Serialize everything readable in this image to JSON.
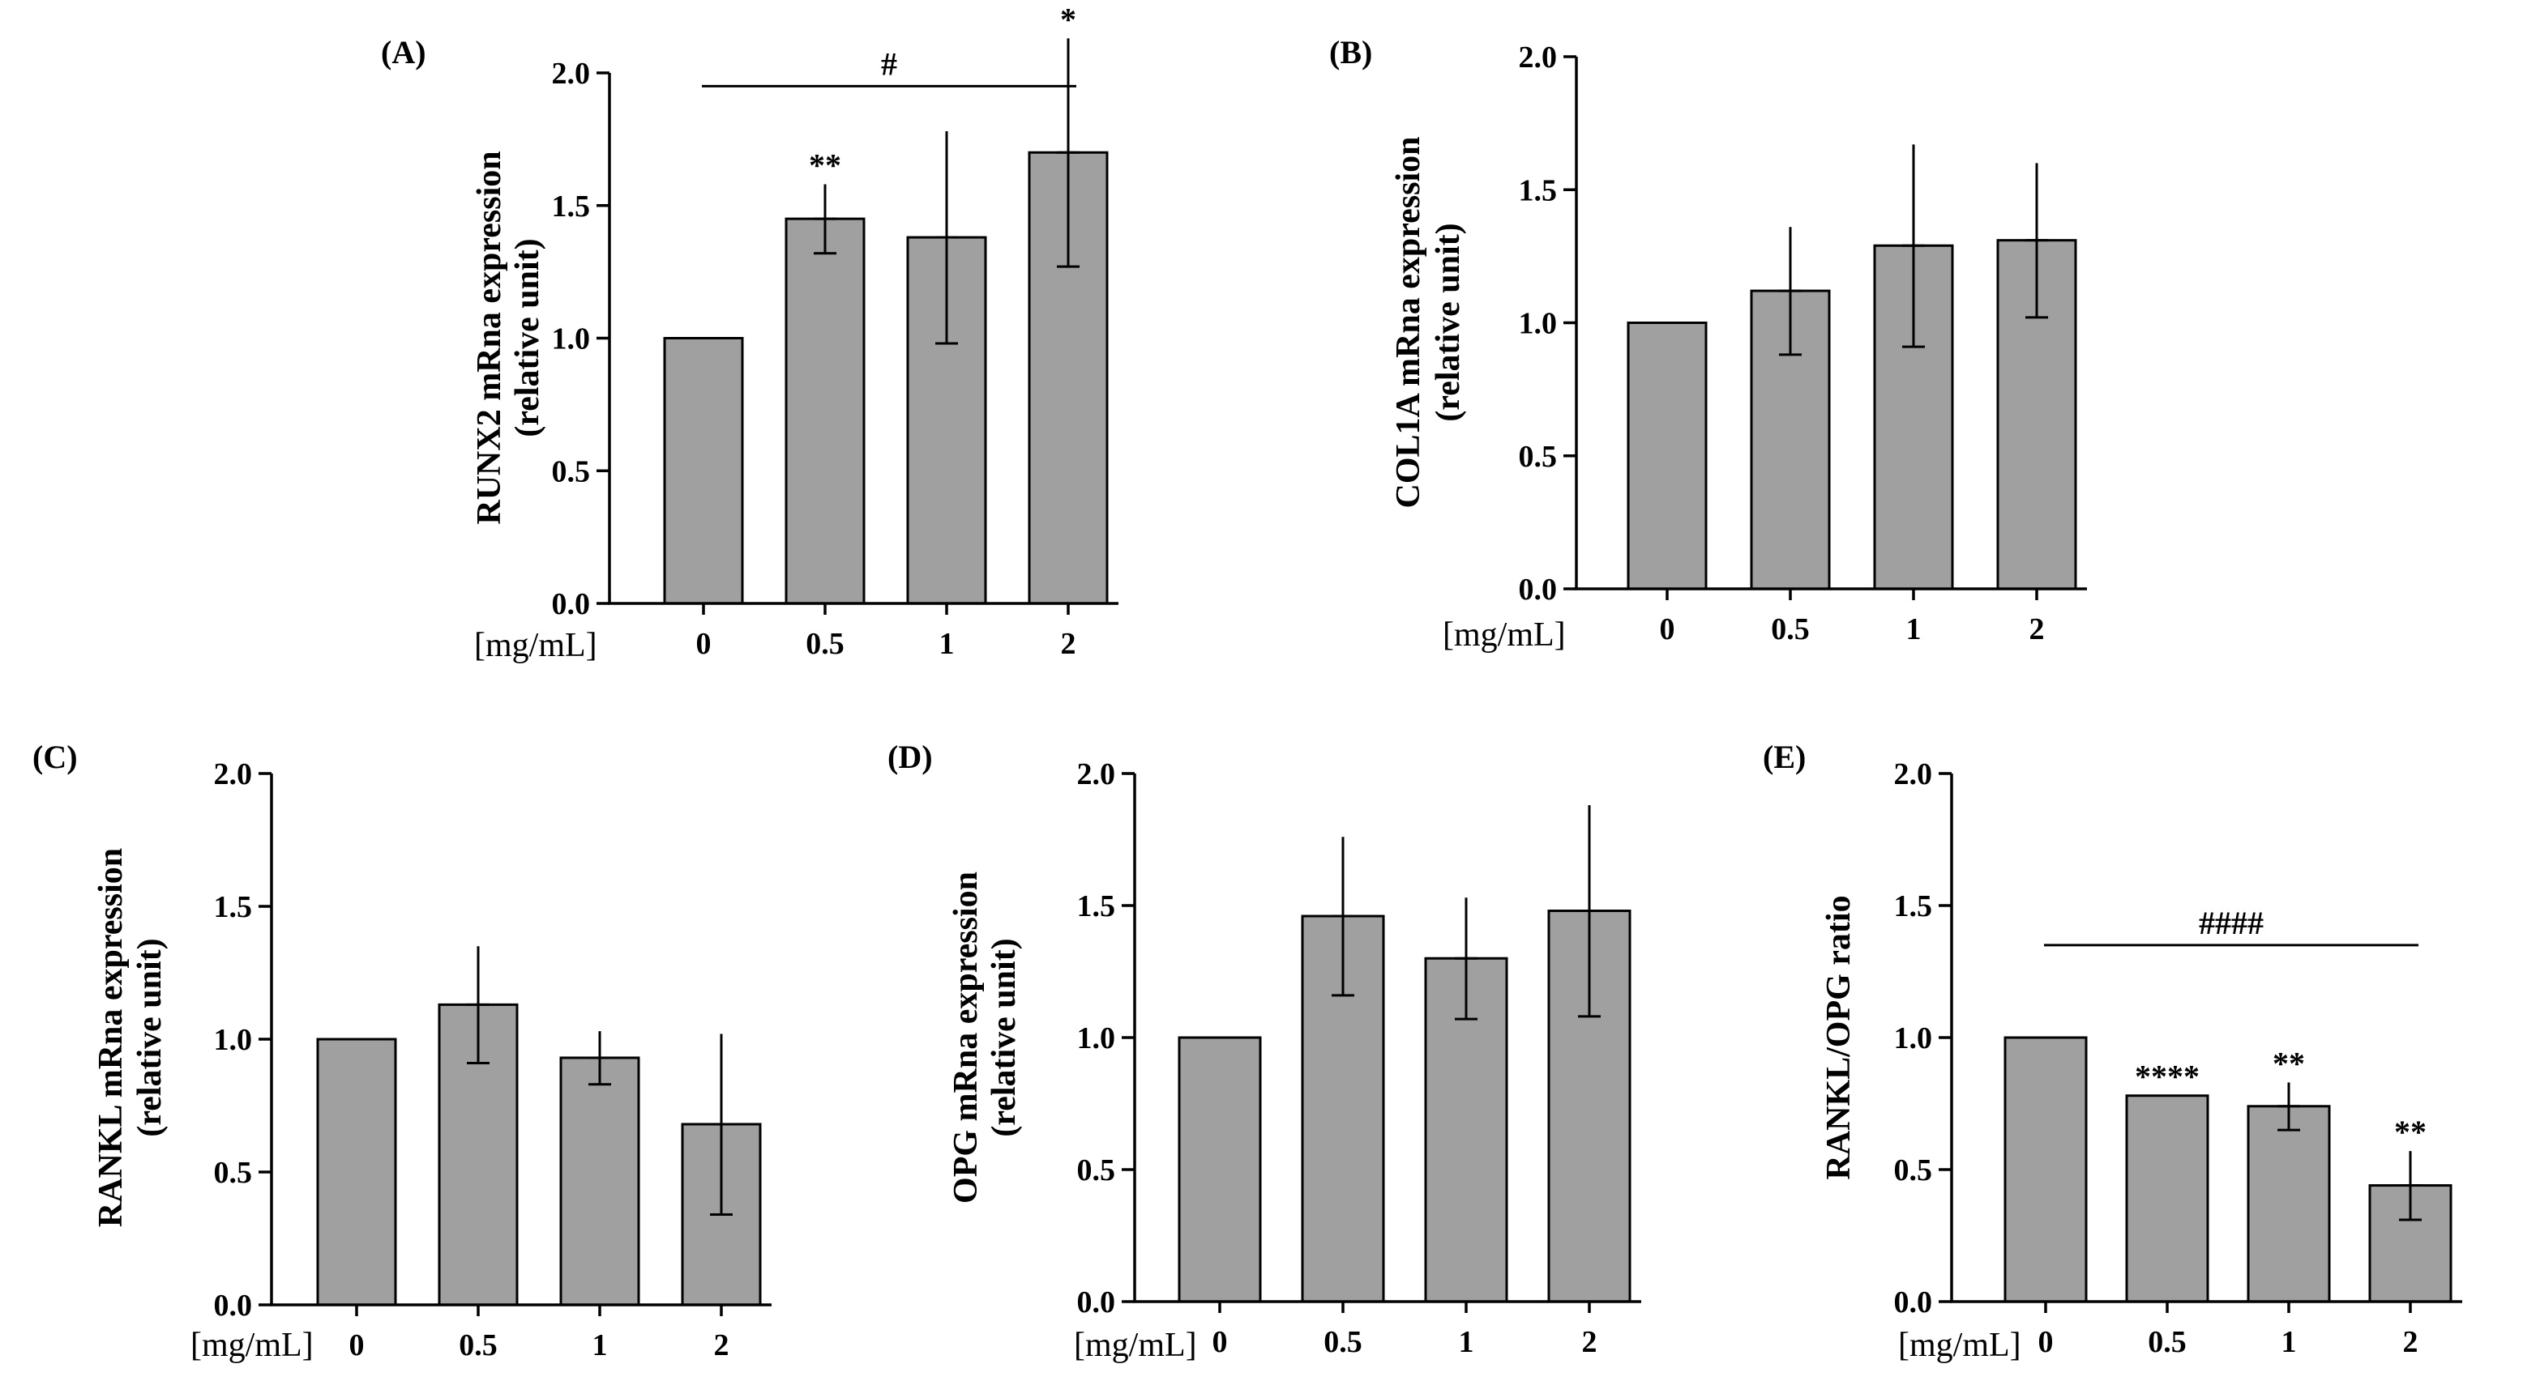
{
  "chart_data": [
    {
      "type": "bar",
      "panel": "(A)",
      "ylabel": [
        "RUNX2 mRna expression",
        "(relative unit)"
      ],
      "unit_label": "[mg/mL]",
      "categories": [
        "0",
        "0.5",
        "1",
        "2"
      ],
      "values": [
        1.0,
        1.45,
        1.38,
        1.7
      ],
      "errors": [
        0,
        0.13,
        0.4,
        0.43
      ],
      "yticks": [
        "0.0",
        "0.5",
        "1.0",
        "1.5",
        "2.0"
      ],
      "ylim": [
        0,
        2
      ],
      "bar_color": "#a0a0a0",
      "significance": [
        "",
        "**",
        "",
        "*"
      ],
      "bracket": {
        "from": 0,
        "to": 3,
        "label": "#",
        "y": 1.95
      }
    },
    {
      "type": "bar",
      "panel": "(B)",
      "ylabel": [
        "COL1A mRna expression",
        "(relative unit)"
      ],
      "unit_label": "[mg/mL]",
      "categories": [
        "0",
        "0.5",
        "1",
        "2"
      ],
      "values": [
        1.0,
        1.12,
        1.29,
        1.31
      ],
      "errors": [
        0,
        0.24,
        0.38,
        0.29
      ],
      "yticks": [
        "0.0",
        "0.5",
        "1.0",
        "1.5",
        "2.0"
      ],
      "ylim": [
        0,
        2
      ],
      "bar_color": "#a0a0a0",
      "significance": [
        "",
        "",
        "",
        ""
      ],
      "bracket": null
    },
    {
      "type": "bar",
      "panel": "(C)",
      "ylabel": [
        "RANKL mRna expression",
        "(relative unit)"
      ],
      "unit_label": "[mg/mL]",
      "categories": [
        "0",
        "0.5",
        "1",
        "2"
      ],
      "values": [
        1.0,
        1.13,
        0.93,
        0.68
      ],
      "errors": [
        0,
        0.22,
        0.1,
        0.34
      ],
      "yticks": [
        "0.0",
        "0.5",
        "1.0",
        "1.5",
        "2.0"
      ],
      "ylim": [
        0,
        2
      ],
      "bar_color": "#a0a0a0",
      "significance": [
        "",
        "",
        "",
        ""
      ],
      "bracket": null
    },
    {
      "type": "bar",
      "panel": "(D)",
      "ylabel": [
        "OPG mRna expression",
        "(relative unit)"
      ],
      "unit_label": "[mg/mL]",
      "categories": [
        "0",
        "0.5",
        "1",
        "2"
      ],
      "values": [
        1.0,
        1.46,
        1.3,
        1.48
      ],
      "errors": [
        0,
        0.3,
        0.23,
        0.4
      ],
      "yticks": [
        "0.0",
        "0.5",
        "1.0",
        "1.5",
        "2.0"
      ],
      "ylim": [
        0,
        2
      ],
      "bar_color": "#a0a0a0",
      "significance": [
        "",
        "",
        "",
        ""
      ],
      "bracket": null
    },
    {
      "type": "bar",
      "panel": "(E)",
      "ylabel": [
        "RANKL/OPG ratio"
      ],
      "unit_label": "[mg/mL]",
      "categories": [
        "0",
        "0.5",
        "1",
        "2"
      ],
      "values": [
        1.0,
        0.78,
        0.74,
        0.44
      ],
      "errors": [
        0,
        0,
        0.09,
        0.13
      ],
      "yticks": [
        "0.0",
        "0.5",
        "1.0",
        "1.5",
        "2.0"
      ],
      "ylim": [
        0,
        2
      ],
      "bar_color": "#a0a0a0",
      "significance": [
        "",
        "****",
        "**",
        "**"
      ],
      "bracket": {
        "from": 0,
        "to": 3,
        "label": "####",
        "y": 1.35
      }
    }
  ]
}
